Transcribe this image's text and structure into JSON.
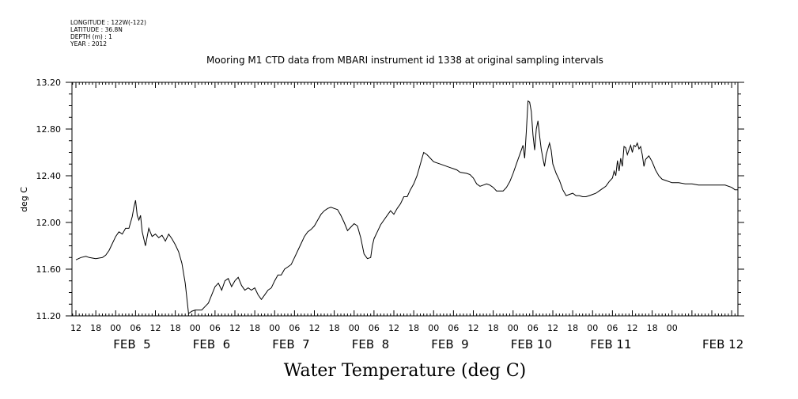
{
  "header": {
    "meta_lines": [
      "LONGITUDE : 122W(-122)",
      "LATITUDE : 36.8N",
      "DEPTH (m) : 1",
      "YEAR : 2012"
    ],
    "title": "Mooring M1 CTD data from MBARI instrument id 1338 at original sampling intervals"
  },
  "chart_data": {
    "type": "line",
    "title": "Mooring M1 CTD data from MBARI instrument id 1338 at original sampling intervals",
    "xlabel": "Water Temperature (deg C)",
    "ylabel": "deg C",
    "ylim": [
      11.2,
      13.2
    ],
    "yticks": [
      "11.20",
      "11.60",
      "12.00",
      "12.40",
      "12.80",
      "13.20"
    ],
    "x_hour_labels": [
      "12",
      "18",
      "00",
      "06",
      "12",
      "18",
      "00",
      "06",
      "12",
      "18",
      "00",
      "06",
      "12",
      "18",
      "00",
      "06",
      "12",
      "18",
      "00",
      "06",
      "12",
      "18",
      "00",
      "06",
      "12",
      "18",
      "00",
      "06",
      "12",
      "18",
      "00"
    ],
    "x_day_labels": [
      "FEB  5",
      "FEB  6",
      "FEB  7",
      "FEB  8",
      "FEB  9",
      "FEB 10",
      "FEB 11",
      "FEB 12"
    ],
    "grid": false,
    "series": [
      {
        "values": [
          [
            0,
            11.68
          ],
          [
            1.5,
            11.7
          ],
          [
            3,
            11.71
          ],
          [
            4,
            11.7
          ],
          [
            6,
            11.69
          ],
          [
            8,
            11.7
          ],
          [
            9,
            11.72
          ],
          [
            10,
            11.76
          ],
          [
            11,
            11.82
          ],
          [
            12,
            11.88
          ],
          [
            13,
            11.92
          ],
          [
            14,
            11.9
          ],
          [
            15,
            11.95
          ],
          [
            16,
            11.95
          ],
          [
            17,
            12.05
          ],
          [
            17.5,
            12.13
          ],
          [
            18,
            12.19
          ],
          [
            18.5,
            12.06
          ],
          [
            19,
            12.02
          ],
          [
            19.5,
            12.06
          ],
          [
            20,
            11.92
          ],
          [
            21,
            11.8
          ],
          [
            22,
            11.95
          ],
          [
            23,
            11.88
          ],
          [
            24,
            11.9
          ],
          [
            25,
            11.87
          ],
          [
            26,
            11.89
          ],
          [
            27,
            11.84
          ],
          [
            28,
            11.9
          ],
          [
            29,
            11.86
          ],
          [
            30,
            11.81
          ],
          [
            31,
            11.75
          ],
          [
            32,
            11.65
          ],
          [
            33,
            11.48
          ],
          [
            33.5,
            11.35
          ],
          [
            34,
            11.22
          ],
          [
            35,
            11.24
          ],
          [
            36,
            11.25
          ],
          [
            38,
            11.25
          ],
          [
            39,
            11.28
          ],
          [
            40,
            11.31
          ],
          [
            41,
            11.38
          ],
          [
            42,
            11.45
          ],
          [
            43,
            11.48
          ],
          [
            44,
            11.42
          ],
          [
            45,
            11.5
          ],
          [
            46,
            11.52
          ],
          [
            47,
            11.45
          ],
          [
            48,
            11.5
          ],
          [
            49,
            11.53
          ],
          [
            50,
            11.46
          ],
          [
            51,
            11.42
          ],
          [
            52,
            11.44
          ],
          [
            53,
            11.42
          ],
          [
            54,
            11.44
          ],
          [
            55,
            11.38
          ],
          [
            56,
            11.34
          ],
          [
            57,
            11.38
          ],
          [
            58,
            11.42
          ],
          [
            59,
            11.44
          ],
          [
            60,
            11.5
          ],
          [
            61,
            11.55
          ],
          [
            62,
            11.55
          ],
          [
            63,
            11.6
          ],
          [
            64,
            11.62
          ],
          [
            65,
            11.64
          ],
          [
            66,
            11.7
          ],
          [
            67,
            11.76
          ],
          [
            68,
            11.82
          ],
          [
            69,
            11.88
          ],
          [
            70,
            11.92
          ],
          [
            71,
            11.94
          ],
          [
            72,
            11.97
          ],
          [
            73,
            12.02
          ],
          [
            74,
            12.07
          ],
          [
            75,
            12.1
          ],
          [
            76,
            12.12
          ],
          [
            77,
            12.13
          ],
          [
            78,
            12.12
          ],
          [
            79,
            12.11
          ],
          [
            80,
            12.06
          ],
          [
            81,
            12.0
          ],
          [
            82,
            11.93
          ],
          [
            83,
            11.96
          ],
          [
            84,
            11.99
          ],
          [
            85,
            11.97
          ],
          [
            86,
            11.87
          ],
          [
            87,
            11.73
          ],
          [
            88,
            11.69
          ],
          [
            89,
            11.7
          ],
          [
            89.5,
            11.8
          ],
          [
            90,
            11.86
          ],
          [
            91,
            11.92
          ],
          [
            92,
            11.98
          ],
          [
            93,
            12.02
          ],
          [
            94,
            12.06
          ],
          [
            95,
            12.1
          ],
          [
            96,
            12.07
          ],
          [
            97,
            12.12
          ],
          [
            98,
            12.16
          ],
          [
            99,
            12.22
          ],
          [
            100,
            12.22
          ],
          [
            101,
            12.28
          ],
          [
            102,
            12.33
          ],
          [
            103,
            12.4
          ],
          [
            104,
            12.5
          ],
          [
            105,
            12.6
          ],
          [
            106,
            12.58
          ],
          [
            107,
            12.55
          ],
          [
            108,
            12.52
          ],
          [
            110,
            12.5
          ],
          [
            112,
            12.48
          ],
          [
            113,
            12.47
          ],
          [
            114,
            12.46
          ],
          [
            115,
            12.45
          ],
          [
            116,
            12.43
          ],
          [
            118,
            12.42
          ],
          [
            119,
            12.41
          ],
          [
            120,
            12.38
          ],
          [
            121,
            12.33
          ],
          [
            122,
            12.31
          ],
          [
            123,
            12.32
          ],
          [
            124,
            12.33
          ],
          [
            125,
            12.32
          ],
          [
            126,
            12.3
          ],
          [
            127,
            12.27
          ],
          [
            129,
            12.27
          ],
          [
            130,
            12.3
          ],
          [
            131,
            12.35
          ],
          [
            132,
            12.42
          ],
          [
            133,
            12.5
          ],
          [
            134,
            12.58
          ],
          [
            135,
            12.66
          ],
          [
            135.5,
            12.55
          ],
          [
            136,
            12.78
          ],
          [
            136.5,
            13.04
          ],
          [
            137,
            13.03
          ],
          [
            137.5,
            12.95
          ],
          [
            138,
            12.75
          ],
          [
            138.5,
            12.62
          ],
          [
            139,
            12.8
          ],
          [
            139.5,
            12.87
          ],
          [
            140,
            12.74
          ],
          [
            140.5,
            12.63
          ],
          [
            141,
            12.55
          ],
          [
            141.5,
            12.48
          ],
          [
            142,
            12.58
          ],
          [
            143,
            12.68
          ],
          [
            143.5,
            12.62
          ],
          [
            144,
            12.5
          ],
          [
            145,
            12.42
          ],
          [
            146,
            12.36
          ],
          [
            147,
            12.28
          ],
          [
            148,
            12.23
          ],
          [
            149,
            12.24
          ],
          [
            150,
            12.25
          ],
          [
            151,
            12.23
          ],
          [
            152,
            12.23
          ],
          [
            153,
            12.22
          ],
          [
            154,
            12.22
          ],
          [
            155,
            12.23
          ],
          [
            156,
            12.24
          ],
          [
            157,
            12.25
          ],
          [
            158,
            12.27
          ],
          [
            159,
            12.29
          ],
          [
            160,
            12.31
          ],
          [
            161,
            12.35
          ],
          [
            162,
            12.38
          ],
          [
            162.5,
            12.44
          ],
          [
            163,
            12.4
          ],
          [
            163.5,
            12.53
          ],
          [
            164,
            12.44
          ],
          [
            164.5,
            12.55
          ],
          [
            165,
            12.48
          ],
          [
            165.5,
            12.65
          ],
          [
            166,
            12.64
          ],
          [
            166.5,
            12.58
          ],
          [
            167,
            12.62
          ],
          [
            167.5,
            12.66
          ],
          [
            168,
            12.6
          ],
          [
            168.5,
            12.66
          ],
          [
            169,
            12.65
          ],
          [
            169.5,
            12.68
          ],
          [
            170,
            12.63
          ],
          [
            170.5,
            12.65
          ],
          [
            171,
            12.58
          ],
          [
            171.5,
            12.48
          ],
          [
            172,
            12.54
          ],
          [
            173,
            12.57
          ],
          [
            174,
            12.52
          ],
          [
            175,
            12.45
          ],
          [
            176,
            12.4
          ],
          [
            177,
            12.37
          ],
          [
            178,
            12.36
          ],
          [
            180,
            12.34
          ],
          [
            182,
            12.34
          ],
          [
            184,
            12.33
          ],
          [
            186,
            12.33
          ],
          [
            188,
            12.32
          ],
          [
            190,
            12.32
          ],
          [
            192,
            12.32
          ],
          [
            194,
            12.32
          ],
          [
            196,
            12.32
          ],
          [
            198,
            12.3
          ],
          [
            199,
            12.28
          ],
          [
            200,
            12.28
          ]
        ]
      }
    ]
  }
}
